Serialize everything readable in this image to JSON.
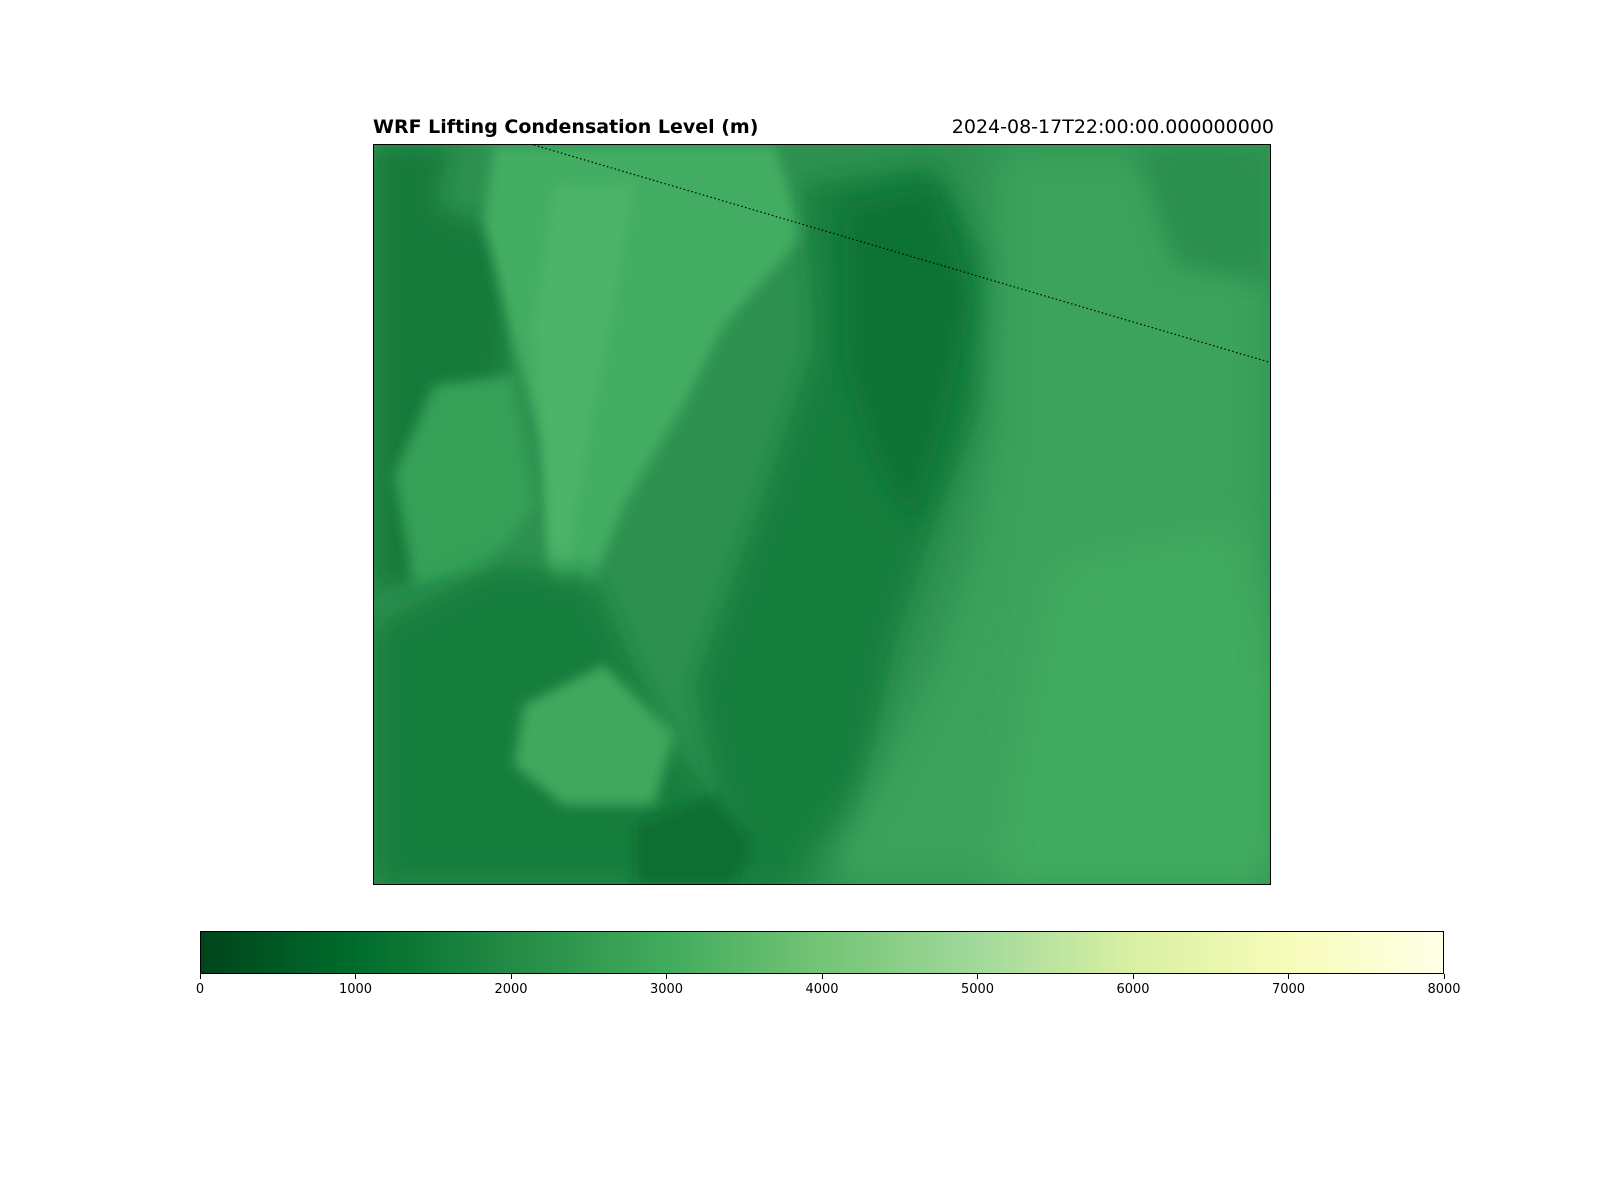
{
  "title": "WRF Lifting Condensation Level (m)",
  "timestamp": "2024-08-17T22:00:00.000000000",
  "colormap": {
    "name": "Greens_r",
    "stops": [
      "#00441b",
      "#006d2c",
      "#238b45",
      "#41ab5d",
      "#74c476",
      "#a1d99b",
      "#c7e9c0",
      "#e5f5e0",
      "#f7fcf5"
    ],
    "end_colors": [
      "#00441b",
      "#ffffe5"
    ]
  },
  "colorbar": {
    "min": 0,
    "max": 8000,
    "ticks": [
      "0",
      "1000",
      "2000",
      "3000",
      "4000",
      "5000",
      "6000",
      "7000",
      "8000"
    ]
  },
  "map": {
    "boundary_line": "dotted",
    "field_range_m": [
      1000,
      3200
    ]
  }
}
